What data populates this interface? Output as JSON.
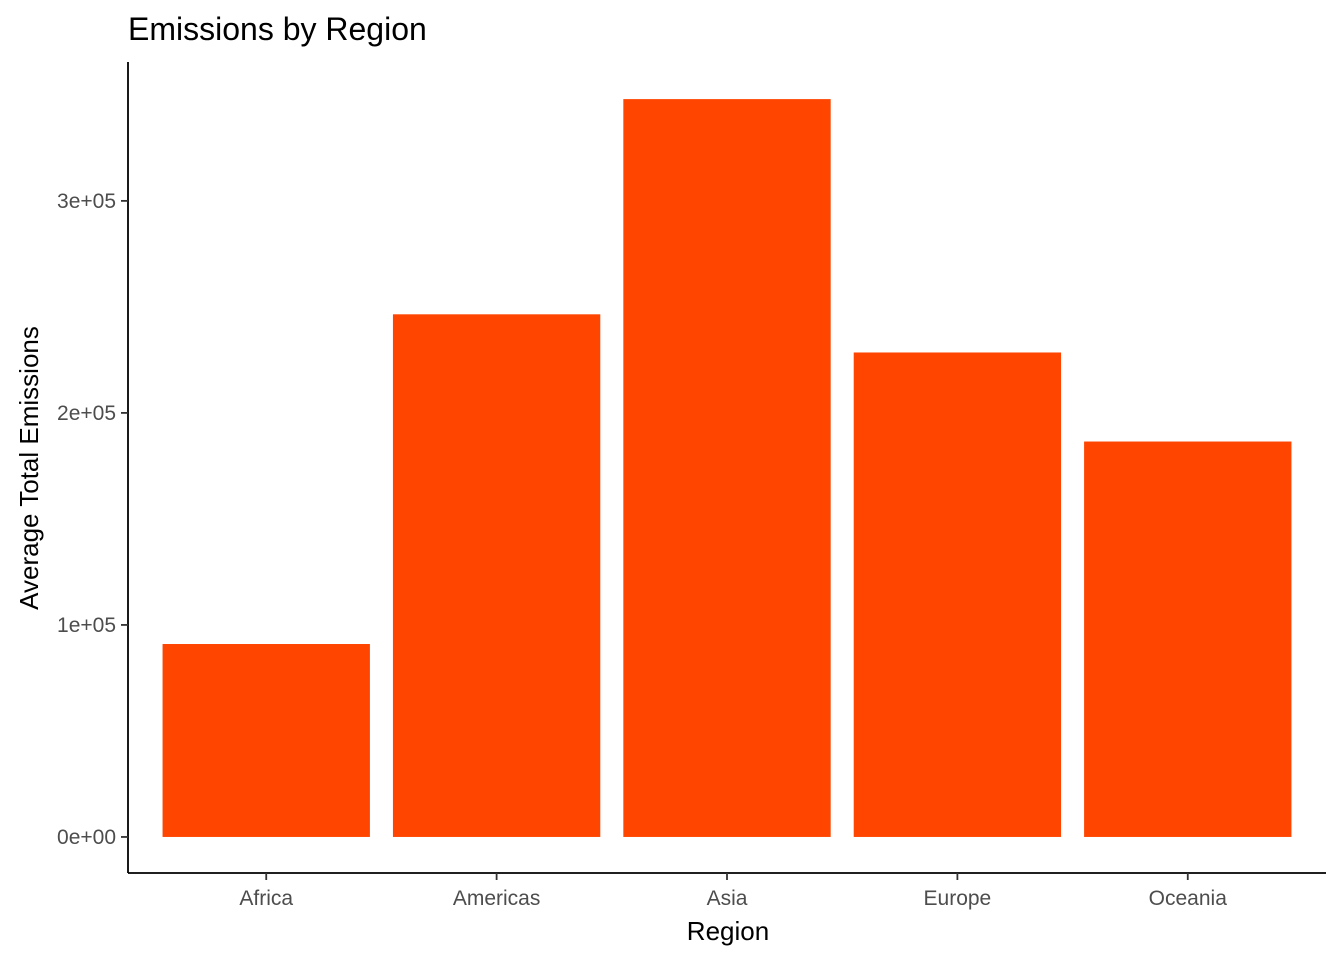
{
  "chart_data": {
    "type": "bar",
    "title": "Emissions by Region",
    "xlabel": "Region",
    "ylabel": "Average Total Emissions",
    "categories": [
      "Africa",
      "Americas",
      "Asia",
      "Europe",
      "Oceania"
    ],
    "values": [
      91000,
      246500,
      348000,
      228500,
      186500
    ],
    "ylim": [
      -17000,
      365500
    ],
    "yticks": [
      0,
      100000,
      200000,
      300000
    ],
    "ytick_labels": [
      "0e+00",
      "1e+05",
      "2e+05",
      "3e+05"
    ],
    "bar_color": "#FF4500",
    "grid": false,
    "legend": "none"
  }
}
